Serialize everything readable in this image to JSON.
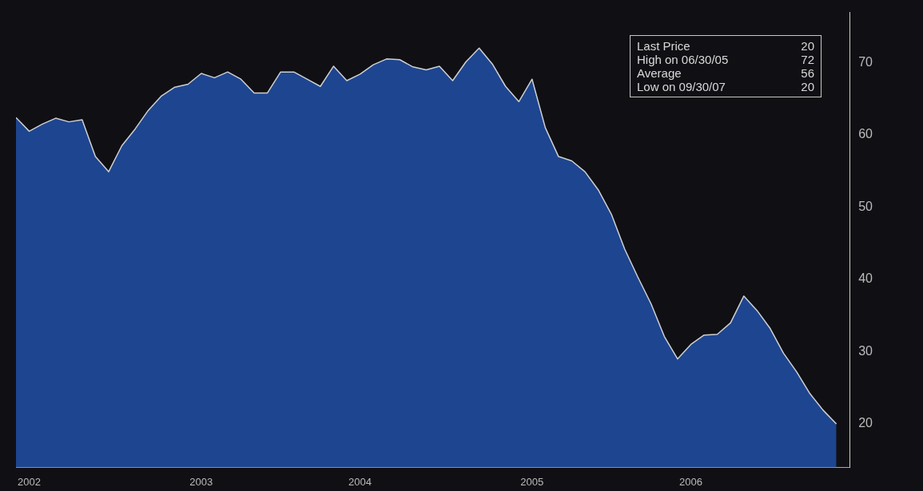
{
  "chart_data": {
    "type": "area",
    "x": [
      "2002-07",
      "2002-08",
      "2002-09",
      "2002-10",
      "2002-11",
      "2002-12",
      "2003-01",
      "2003-02",
      "2003-03",
      "2003-04",
      "2003-05",
      "2003-06",
      "2003-07",
      "2003-08",
      "2003-09",
      "2003-10",
      "2003-11",
      "2003-12",
      "2004-01",
      "2004-02",
      "2004-03",
      "2004-04",
      "2004-05",
      "2004-06",
      "2004-07",
      "2004-08",
      "2004-09",
      "2004-10",
      "2004-11",
      "2004-12",
      "2005-01",
      "2005-02",
      "2005-03",
      "2005-04",
      "2005-05",
      "2005-06",
      "2005-07",
      "2005-08",
      "2005-09",
      "2005-10",
      "2005-11",
      "2005-12",
      "2006-01",
      "2006-02",
      "2006-03",
      "2006-04",
      "2006-05",
      "2006-06",
      "2006-07",
      "2006-08",
      "2006-09",
      "2006-10",
      "2006-11",
      "2006-12",
      "2007-01",
      "2007-02",
      "2007-03",
      "2007-04",
      "2007-05",
      "2007-06",
      "2007-07",
      "2007-08",
      "2007-09"
    ],
    "series": [
      {
        "color": "#1e4590",
        "values": [
          62.4,
          60.5,
          61.5,
          62.3,
          61.8,
          62.1,
          57.0,
          54.9,
          58.5,
          60.8,
          63.4,
          65.4,
          66.6,
          67.0,
          68.5,
          67.9,
          68.7,
          67.7,
          65.8,
          65.8,
          68.7,
          68.7,
          67.7,
          66.7,
          69.5,
          67.5,
          68.4,
          69.7,
          70.5,
          70.4,
          69.4,
          69.0,
          69.5,
          67.5,
          70.1,
          72,
          69.8,
          66.7,
          64.6,
          67.7,
          61.0,
          57.0,
          56.4,
          54.9,
          52.4,
          49.0,
          44.2,
          40.3,
          36.6,
          32.1,
          29.0,
          31.0,
          32.3,
          32.4,
          34.0,
          37.7,
          35.7,
          33.2,
          29.8,
          27.2,
          24.2,
          21.9,
          20
        ]
      }
    ],
    "xlim": [
      "2002-07",
      "2007-10"
    ],
    "xticks": [
      {
        "value": "2002-08",
        "label": "2002"
      },
      {
        "value": "2003-09",
        "label": "2003"
      },
      {
        "value": "2004-09",
        "label": "2004"
      },
      {
        "value": "2005-10",
        "label": "2005"
      },
      {
        "value": "2006-10",
        "label": "2006"
      }
    ],
    "ylim": [
      14,
      77
    ],
    "yticks": [
      20,
      30,
      40,
      50,
      60,
      70
    ],
    "annotations": [
      "Last Price 20",
      "High on 06/30/05 72",
      "Average 56",
      "Low on 09/30/07 20"
    ],
    "grid": false,
    "legend": false
  }
}
